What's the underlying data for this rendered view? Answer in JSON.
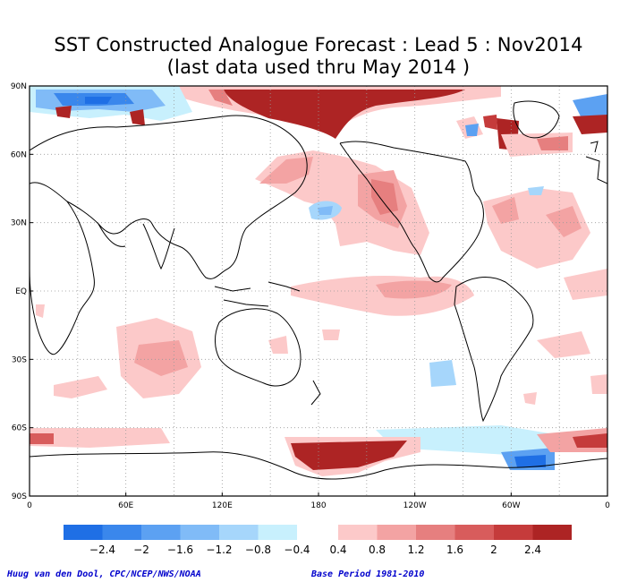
{
  "title": {
    "line1": "SST Constructed Analogue Forecast : Lead 5 : Nov2014",
    "line2": "(last data used thru May 2014 )"
  },
  "map": {
    "variable": "SST anomaly",
    "lat_ticks": [
      "90N",
      "60N",
      "30N",
      "EQ",
      "30S",
      "60S",
      "90S"
    ],
    "lon_ticks": [
      "0",
      "60E",
      "120E",
      "180",
      "120W",
      "60W",
      "0"
    ],
    "grid": "dotted",
    "coastlines": true
  },
  "colorbar": {
    "negative": [
      {
        "label": "−2.4",
        "color": "#1f6fe5"
      },
      {
        "label": "−2",
        "color": "#3a87ec"
      },
      {
        "label": "−1.6",
        "color": "#5ca1f2"
      },
      {
        "label": "−1.2",
        "color": "#80bbf7"
      },
      {
        "label": "−0.8",
        "color": "#a6d6fb"
      },
      {
        "label": "−0.4",
        "color": "#c8f0fd"
      }
    ],
    "positive": [
      {
        "label": "0.4",
        "color": "#fcc9c9"
      },
      {
        "label": "0.8",
        "color": "#f3a3a3"
      },
      {
        "label": "1.2",
        "color": "#e67f7f"
      },
      {
        "label": "1.6",
        "color": "#d85c5c"
      },
      {
        "label": "2",
        "color": "#c53b3b"
      },
      {
        "label": "2.4",
        "color": "#ad2424"
      }
    ],
    "extreme_neg_color": "#1f6fe5",
    "extreme_pos_color": "#ad2424"
  },
  "footer": {
    "credit": "Huug van den Dool, CPC/NCEP/NWS/NOAA",
    "base_period": "Base Period 1981-2010"
  }
}
